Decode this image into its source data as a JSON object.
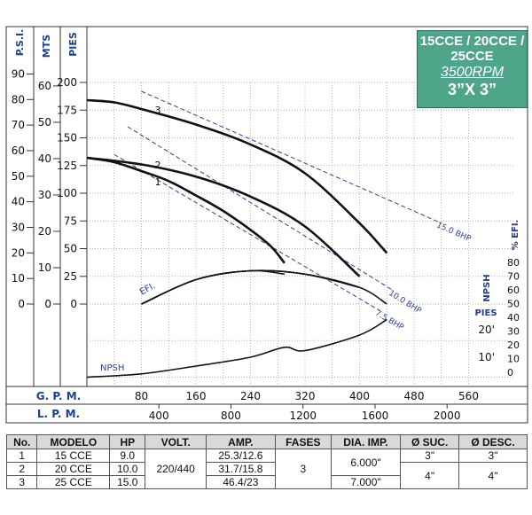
{
  "badge": {
    "models": "15CCE / 20CCE / 25CCE",
    "rpm": "3500RPM",
    "size": "3”X 3”"
  },
  "axes": {
    "psi_label": "P.S.I.",
    "mts_label": "MTS",
    "pies_label": "PIES",
    "gpm_label": "G. P. M.",
    "lpm_label": "L. P. M.",
    "psi_ticks": [
      "90",
      "80",
      "70",
      "60",
      "50",
      "40",
      "30",
      "20",
      "10",
      "0"
    ],
    "mts_ticks": [
      "60",
      "50",
      "40",
      "30",
      "20",
      "10",
      "0"
    ],
    "pies_ticks": [
      "200",
      "175",
      "150",
      "125",
      "100",
      "75",
      "50",
      "25",
      "0"
    ],
    "gpm_ticks": [
      "80",
      "160",
      "240",
      "320",
      "400",
      "480",
      "560"
    ],
    "lpm_ticks": [
      "400",
      "800",
      "1200",
      "1600",
      "2000"
    ],
    "efi_label": "% EFI.",
    "efi_ticks": [
      "80",
      "70",
      "60",
      "50",
      "40",
      "30",
      "20",
      "10",
      "0"
    ],
    "npsh_label": "NPSH",
    "npsh_pies": "PIES",
    "npsh_ticks": [
      "20'",
      "10'"
    ]
  },
  "chart_data": {
    "type": "line",
    "xlabel": "G. P. M.",
    "xlim": [
      0,
      580
    ],
    "ylabel": "PIES",
    "ylim": [
      0,
      200
    ],
    "series": [
      {
        "name": "3",
        "x": [
          0,
          40,
          80,
          160,
          240,
          320,
          400,
          440
        ],
        "y": [
          184,
          182,
          176,
          162,
          144,
          118,
          73,
          46
        ]
      },
      {
        "name": "2",
        "x": [
          0,
          80,
          160,
          240,
          320,
          400
        ],
        "y": [
          132,
          126,
          115,
          97,
          70,
          25
        ]
      },
      {
        "name": "1",
        "x": [
          0,
          40,
          80,
          120,
          160,
          200,
          240,
          270,
          290
        ],
        "y": [
          132,
          128,
          120,
          111,
          98,
          84,
          67,
          52,
          37
        ]
      },
      {
        "name": "EFI. 1",
        "x": [
          80,
          160,
          240,
          290
        ],
        "y": [
          0,
          22,
          30,
          27
        ]
      },
      {
        "name": "EFI. 2",
        "x": [
          80,
          160,
          240,
          320,
          400
        ],
        "y": [
          0,
          22,
          30,
          27,
          15
        ]
      },
      {
        "name": "EFI. 3",
        "x": [
          80,
          160,
          240,
          320,
          400,
          440
        ],
        "y": [
          0,
          22,
          30,
          27,
          15,
          0
        ]
      },
      {
        "name": "NPSH",
        "x": [
          0,
          80,
          160,
          240,
          290,
          320,
          400,
          440
        ],
        "y": [
          -66,
          -63,
          -56,
          -48,
          -39,
          -42,
          -28,
          -14
        ]
      }
    ],
    "bhp_lines": [
      {
        "label": "15.0 BHP",
        "x": [
          80,
          520
        ],
        "y": [
          192,
          73
        ]
      },
      {
        "label": "10.0 BHP",
        "x": [
          60,
          450
        ],
        "y": [
          160,
          12
        ]
      },
      {
        "label": "7.5 BHP",
        "x": [
          40,
          430
        ],
        "y": [
          135,
          -6
        ]
      }
    ],
    "annotations": [
      "1",
      "2",
      "3",
      "EFI.",
      "NPSH"
    ]
  },
  "table": {
    "headers": [
      "No.",
      "MODELO",
      "HP",
      "VOLT.",
      "AMP.",
      "FASES",
      "DIA. IMP.",
      "Ø SUC.",
      "Ø DESC."
    ],
    "rows": [
      {
        "no": "1",
        "modelo": "15 CCE",
        "hp": "9.0",
        "amp": "25.3/12.6"
      },
      {
        "no": "2",
        "modelo": "20 CCE",
        "hp": "10.0",
        "amp": "31.7/15.8"
      },
      {
        "no": "3",
        "modelo": "25 CCE",
        "hp": "15.0",
        "amp": "46.4/23"
      }
    ],
    "volt": "220/440",
    "fases": "3",
    "dia": [
      "6.000\"",
      "7.000\""
    ],
    "suc": [
      "3\"",
      "4\""
    ],
    "desc": [
      "3\"",
      "4\""
    ]
  }
}
